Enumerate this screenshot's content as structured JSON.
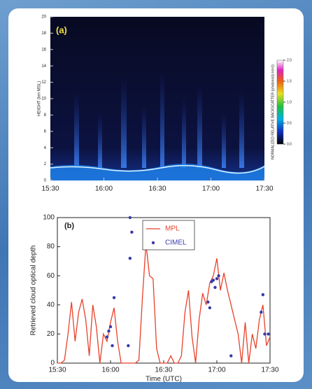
{
  "chart_data": [
    {
      "type": "image",
      "title": "(a)",
      "ylabel": "HEIGHT (km MSL)",
      "ylim": [
        0,
        20
      ],
      "yticks": [
        0,
        2,
        4,
        6,
        8,
        10,
        12,
        14,
        16,
        18,
        20
      ],
      "xlim": [
        "15:30",
        "17:30"
      ],
      "xticks": [
        "15:30",
        "16:00",
        "16:30",
        "17:00",
        "17:30"
      ],
      "colorbar_label": "NORMALIZED RELATIVE BACKSCATTER (photons/(s·km²))",
      "colorbar_lim": [
        0,
        2
      ],
      "colorbar_ticks": [
        {
          "value": 0,
          "label": "0.0"
        },
        {
          "value": 0.5,
          "label": "0.5"
        },
        {
          "value": 1,
          "label": "1.0"
        },
        {
          "value": 1.5,
          "label": "1.5"
        },
        {
          "value": 2,
          "label": "2.0"
        }
      ]
    },
    {
      "type": "line",
      "title": "(b)",
      "ylabel": "Retrieved cloud optical depth",
      "xlabel": "Time (UTC)",
      "ylim": [
        0,
        100
      ],
      "yticks": [
        0,
        20,
        40,
        60,
        80,
        100
      ],
      "xlim": [
        "15:30",
        "17:30"
      ],
      "xticks": [
        "15:30",
        "16:00",
        "16:30",
        "17:00",
        "17:30"
      ],
      "legend": "upper center",
      "series": [
        {
          "name": "MPL",
          "color": "#e8412a",
          "style": "line",
          "x": [
            "15:30",
            "15:32",
            "15:34",
            "15:36",
            "15:38",
            "15:40",
            "15:42",
            "15:44",
            "15:46",
            "15:48",
            "15:50",
            "15:52",
            "15:54",
            "15:56",
            "15:58",
            "16:00",
            "16:02",
            "16:04",
            "16:06",
            "16:08",
            "16:10",
            "16:12",
            "16:14",
            "16:16",
            "16:18",
            "16:20",
            "16:22",
            "16:24",
            "16:26",
            "16:28",
            "16:30",
            "16:32",
            "16:34",
            "16:36",
            "16:38",
            "16:40",
            "16:42",
            "16:44",
            "16:46",
            "16:48",
            "16:50",
            "16:52",
            "16:54",
            "16:56",
            "16:58",
            "17:00",
            "17:02",
            "17:04",
            "17:06",
            "17:08",
            "17:10",
            "17:12",
            "17:14",
            "17:16",
            "17:18",
            "17:20",
            "17:22",
            "17:24",
            "17:26",
            "17:28",
            "17:30"
          ],
          "values": [
            0,
            0,
            2,
            20,
            42,
            15,
            35,
            44,
            30,
            5,
            40,
            25,
            0,
            20,
            15,
            28,
            38,
            15,
            0,
            0,
            0,
            0,
            0,
            2,
            45,
            82,
            60,
            58,
            10,
            0,
            0,
            0,
            5,
            0,
            0,
            5,
            35,
            50,
            18,
            0,
            30,
            48,
            40,
            55,
            60,
            72,
            50,
            62,
            50,
            40,
            30,
            20,
            0,
            28,
            0,
            20,
            10,
            30,
            40,
            12,
            18
          ]
        },
        {
          "name": "CIMEL",
          "color": "#3a3aa8",
          "style": "markers",
          "x": [
            "15:58",
            "15:59",
            "16:00",
            "16:01",
            "16:02",
            "16:10",
            "16:11",
            "16:11",
            "16:12",
            "16:55",
            "16:56",
            "16:57",
            "16:58",
            "16:59",
            "17:00",
            "17:01",
            "17:08",
            "17:25",
            "17:26",
            "17:27",
            "17:29"
          ],
          "values": [
            18,
            22,
            25,
            12,
            45,
            12,
            72,
            100,
            90,
            42,
            38,
            56,
            57,
            52,
            58,
            60,
            5,
            35,
            47,
            20,
            20
          ]
        }
      ]
    }
  ]
}
